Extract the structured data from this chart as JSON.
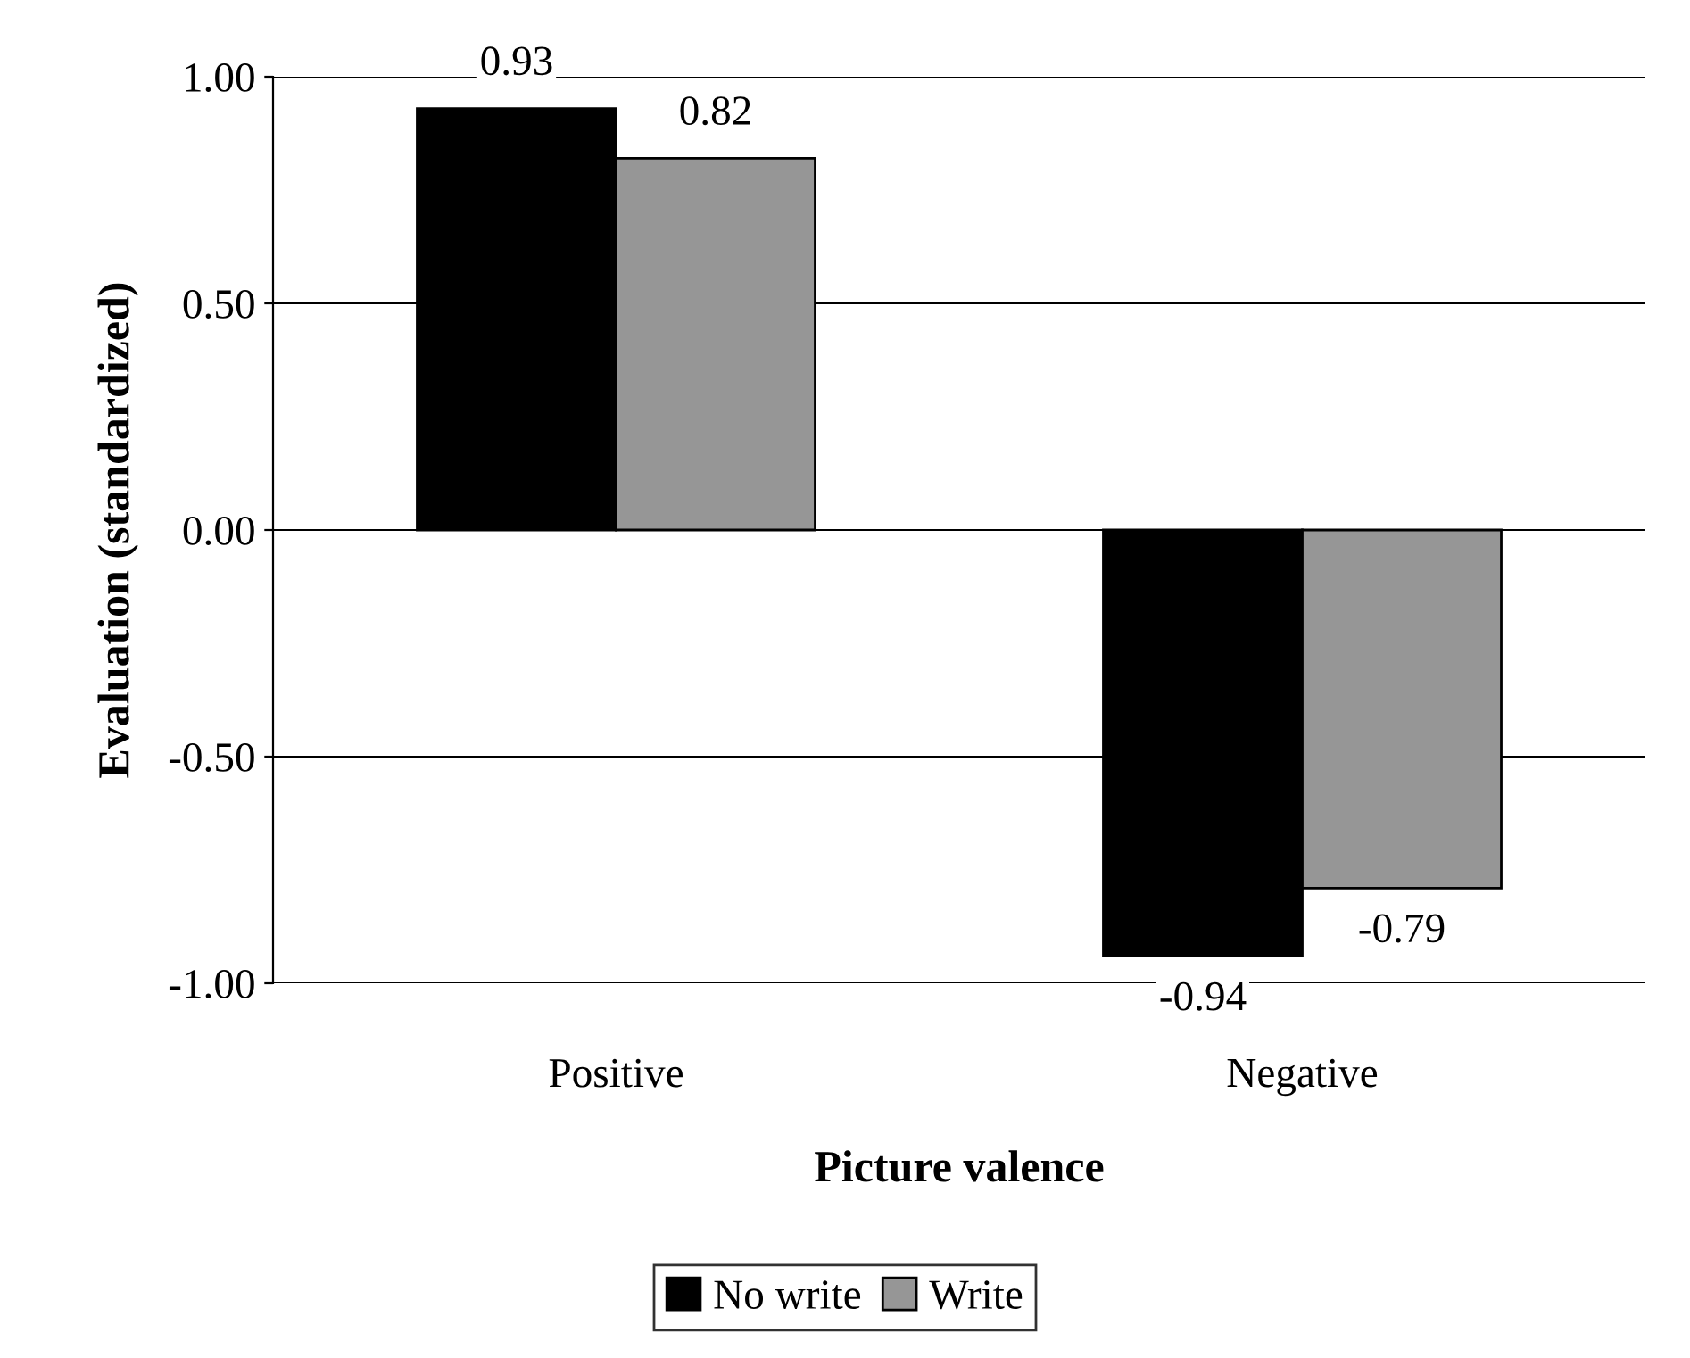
{
  "chart_data": {
    "type": "bar",
    "xlabel": "Picture valence",
    "ylabel": "Evaluation (standardized)",
    "categories": [
      "Positive",
      "Negative"
    ],
    "series": [
      {
        "name": "No write",
        "color": "#000000",
        "values": [
          0.93,
          -0.94
        ]
      },
      {
        "name": "Write",
        "color": "#969696",
        "values": [
          0.82,
          -0.79
        ]
      }
    ],
    "ylim": [
      -1,
      1
    ],
    "yticks": [
      {
        "value": -1,
        "label": "-1.00"
      },
      {
        "value": -0.5,
        "label": "-0.50"
      },
      {
        "value": 0,
        "label": "0.00"
      },
      {
        "value": 0.5,
        "label": "0.50"
      },
      {
        "value": 1,
        "label": "1.00"
      }
    ],
    "grid": "y",
    "legend": "bottom",
    "data_labels": true
  }
}
